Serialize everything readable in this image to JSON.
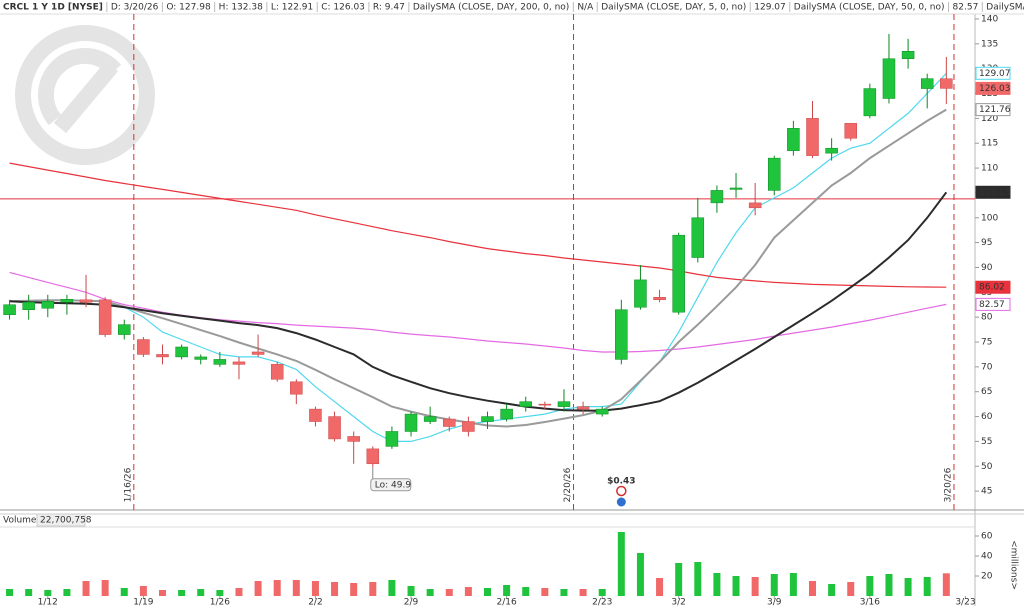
{
  "header": {
    "items": [
      "CRCL 1 Y 1D [NYSE]",
      "D: 3/20/26",
      "O: 127.98",
      "H: 132.38",
      "L: 122.91",
      "C: 126.03",
      "R: 9.47"
    ],
    "study": {
      "name": "DailySMA (CLOSE, DAY, 200, 0, no)",
      "value": "N/A",
      "color": "#d4a000"
    }
  },
  "chart_data": [
    {
      "type": "candlestick",
      "up_color": "#1fc43c",
      "down_color": "#f06868",
      "xlim": [
        -0.5,
        50.5
      ],
      "ylim": [
        41.2,
        141
      ],
      "yticks": [
        45,
        50,
        55,
        60,
        65,
        70,
        75,
        80,
        85,
        90,
        95,
        100,
        105,
        110,
        115,
        120,
        125,
        130,
        135,
        140
      ],
      "open": [
        80.5,
        81.5,
        81.8,
        83,
        83.5,
        83.5,
        76.5,
        75.5,
        72.5,
        72,
        71.5,
        70.5,
        71,
        73,
        70.5,
        67,
        61.5,
        60,
        56,
        53.5,
        54,
        57,
        59,
        59.5,
        59,
        59,
        59.5,
        62,
        62.5,
        62,
        62,
        60.5,
        71.5,
        82,
        84,
        81,
        92,
        103,
        105.7,
        103,
        105.5,
        113.5,
        120,
        113,
        119,
        120.5,
        124,
        132,
        126,
        127.98
      ],
      "high": [
        83.5,
        84.5,
        84.5,
        84.5,
        88.5,
        84,
        79.5,
        76,
        74.5,
        74.5,
        72.5,
        73,
        72,
        76.5,
        71,
        67.5,
        62,
        61,
        57,
        54,
        58,
        61,
        62,
        60,
        60,
        61,
        62.5,
        64,
        63,
        65.5,
        63,
        62,
        83.5,
        90.5,
        85.5,
        97,
        104,
        106.5,
        109,
        107,
        112.5,
        119.5,
        123.5,
        116,
        119,
        127,
        137,
        136,
        129,
        132.38
      ],
      "low": [
        79.5,
        79.5,
        80,
        80.5,
        82,
        76,
        75.5,
        72,
        70.5,
        71.5,
        70.5,
        70,
        67.5,
        72,
        67,
        62.5,
        58,
        55,
        50.5,
        49.9,
        53.5,
        56,
        58.5,
        57,
        56,
        57.5,
        59,
        61,
        61.5,
        61,
        60.5,
        60,
        70.5,
        81.5,
        83,
        80.5,
        91,
        101,
        104,
        100.5,
        104.5,
        112.5,
        112,
        111.5,
        115.5,
        120,
        123,
        130,
        122,
        122.91
      ],
      "close": [
        82.5,
        83,
        83.2,
        83.6,
        83,
        76.5,
        78.5,
        72.5,
        72,
        74,
        72,
        71.5,
        70.5,
        72.5,
        67.5,
        64.5,
        59,
        55.5,
        55,
        50.5,
        57,
        60.5,
        60,
        58,
        57,
        60,
        61.5,
        63,
        62.4,
        63,
        61.5,
        61.5,
        81.5,
        87.5,
        83.5,
        96.5,
        100,
        105.5,
        106,
        102,
        112,
        118,
        112.5,
        114,
        116,
        126,
        132,
        133.5,
        128,
        126.03
      ],
      "series": [
        {
          "name": "DailySMA (CLOSE, DAY, 5, 0, no)",
          "color": "#4fd8ec",
          "values": [
            null,
            null,
            null,
            null,
            null,
            83,
            82,
            80,
            77,
            75.5,
            74,
            72.5,
            72,
            72,
            71,
            69.5,
            66,
            63,
            60,
            57,
            55,
            55,
            56,
            57.5,
            58.5,
            59,
            59.5,
            60,
            60.5,
            61.5,
            62,
            62,
            62.5,
            67,
            71,
            77,
            84,
            91,
            97,
            102,
            104,
            106,
            109,
            112,
            114,
            115,
            118,
            121,
            125,
            129.07
          ]
        },
        {
          "name": "DailySMA (CLOSE, DAY, 50, 0, no)",
          "color": "#e46ae4",
          "values": [
            89,
            88,
            87,
            86,
            85,
            83.6,
            82.5,
            81.8,
            81,
            80.4,
            79.9,
            79.5,
            79.2,
            78.9,
            78.7,
            78.4,
            78.2,
            78,
            77.8,
            77.5,
            77,
            76.6,
            76.3,
            76,
            75.6,
            75.2,
            74.9,
            74.6,
            74.2,
            73.8,
            73.3,
            73,
            73,
            73.1,
            73.3,
            73.6,
            74,
            74.5,
            75,
            75.5,
            76.2,
            76.8,
            77.4,
            78,
            78.7,
            79.4,
            80.2,
            81,
            81.8,
            82.57
          ]
        },
        {
          "name": "DailySMA (CLOSE, DAY, 100, 0, no)",
          "color": "#e8323c",
          "values": [
            111,
            110.3,
            109.6,
            108.9,
            108.2,
            107.5,
            106.9,
            106.3,
            105.7,
            105.1,
            104.5,
            103.9,
            103.3,
            102.7,
            102.1,
            101.5,
            100.6,
            99.8,
            99,
            98.2,
            97.4,
            96.7,
            96,
            95.2,
            94.5,
            93.8,
            93.3,
            92.8,
            92.4,
            91.9,
            91.5,
            91.1,
            90.7,
            90.3,
            89.9,
            89.3,
            88.6,
            88,
            87.6,
            87.3,
            87,
            86.8,
            86.6,
            86.5,
            86.4,
            86.3,
            86.2,
            86.1,
            86.06,
            86.02
          ]
        },
        {
          "color": "#9a9a9a",
          "values": [
            83.2,
            83.3,
            83.4,
            83.4,
            83.3,
            83.2,
            82.1,
            80.9,
            79.8,
            78.6,
            77.4,
            76.2,
            74.9,
            73.7,
            72.5,
            71.2,
            69.4,
            67.5,
            65.7,
            63.9,
            62,
            61,
            60.1,
            59.4,
            58.8,
            58.2,
            58,
            58.3,
            58.9,
            59.6,
            60.3,
            61.2,
            63.5,
            67.2,
            71,
            75,
            78.5,
            82.2,
            86,
            90.5,
            96,
            99.5,
            103,
            106.5,
            109,
            112,
            114.5,
            117,
            119.5,
            121.76
          ]
        },
        {
          "color": "#2b2b2b",
          "values": [
            83.2,
            83,
            82.9,
            82.8,
            82.7,
            82.5,
            82,
            81.4,
            80.8,
            80.3,
            79.8,
            79.3,
            78.8,
            78.4,
            77.8,
            76.8,
            75.5,
            74,
            72.5,
            70,
            68.3,
            67,
            65.7,
            64.7,
            63.9,
            63.2,
            62.6,
            62,
            61.6,
            61.3,
            61.2,
            61.2,
            61.6,
            62.3,
            63.1,
            64.8,
            66.8,
            69,
            71.3,
            73.6,
            76,
            78.4,
            80.8,
            83.3,
            86,
            88.8,
            92,
            95.5,
            100,
            105.13
          ]
        }
      ],
      "hline": {
        "value": 103.8,
        "color": "#e8323c"
      },
      "date_lines": [
        {
          "value": 6.5,
          "label": "1/16/26"
        },
        {
          "value": 29.5,
          "label": "2/20/26"
        },
        {
          "value": 49.4,
          "label": "3/20/26"
        }
      ],
      "annotations": [
        {
          "x": 19,
          "label": "Lo: 49.9"
        }
      ],
      "events": [
        {
          "x": 32,
          "label": "$0.43",
          "color": "#2eaa4a"
        }
      ]
    },
    {
      "type": "bar",
      "title": "Volume",
      "last_label": "22,700,758",
      "ylabel": "<millions>",
      "xlim": [
        -0.5,
        50.5
      ],
      "ylim": [
        0,
        68
      ],
      "yticks": [
        20,
        40,
        60
      ],
      "xticks": [
        {
          "value": 2,
          "label": "1/12"
        },
        {
          "value": 7,
          "label": "1/19"
        },
        {
          "value": 11,
          "label": "1/26"
        },
        {
          "value": 16,
          "label": "2/2"
        },
        {
          "value": 21,
          "label": "2/9"
        },
        {
          "value": 26,
          "label": "2/16"
        },
        {
          "value": 31,
          "label": "2/23"
        },
        {
          "value": 35,
          "label": "3/2"
        },
        {
          "value": 40,
          "label": "3/9"
        },
        {
          "value": 45,
          "label": "3/16"
        },
        {
          "value": 50,
          "label": "3/23"
        }
      ],
      "values": [
        7,
        7,
        6,
        7,
        15,
        16,
        8,
        10,
        6,
        6,
        7,
        6,
        8,
        15,
        16,
        16,
        15,
        14,
        13,
        14,
        16,
        10,
        7,
        7,
        9,
        8,
        11,
        9,
        8,
        7,
        7,
        7,
        64,
        43,
        18,
        33,
        34,
        23,
        20,
        19,
        22,
        23,
        15,
        12,
        14,
        20,
        22,
        18,
        19,
        22.700758
      ]
    }
  ]
}
